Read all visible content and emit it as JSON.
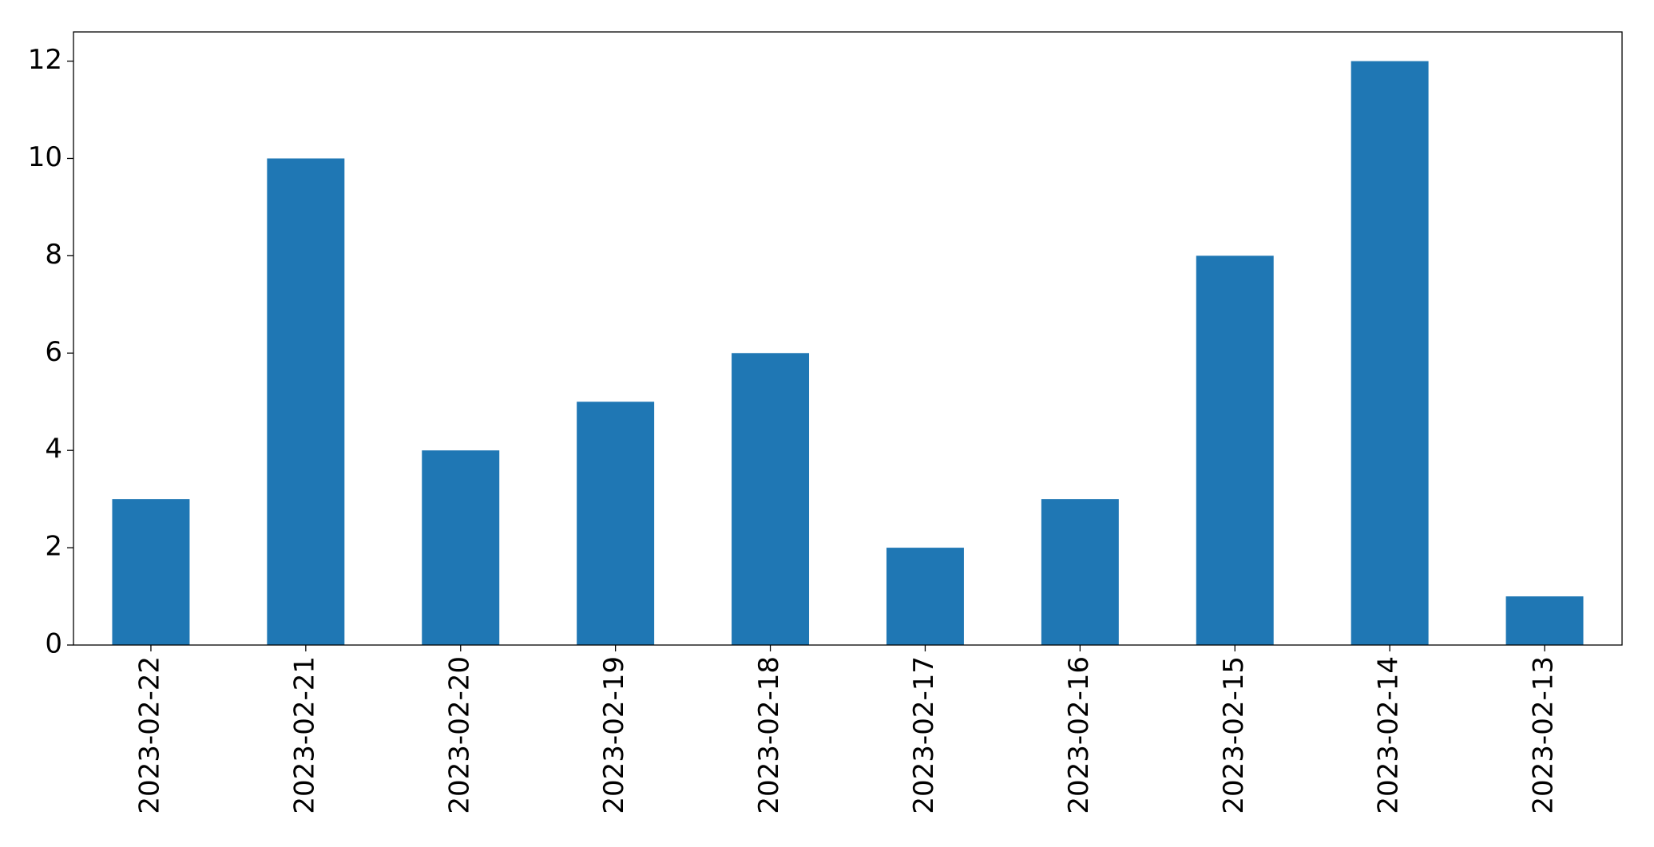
{
  "chart_data": {
    "type": "bar",
    "categories": [
      "2023-02-22",
      "2023-02-21",
      "2023-02-20",
      "2023-02-19",
      "2023-02-18",
      "2023-02-17",
      "2023-02-16",
      "2023-02-15",
      "2023-02-14",
      "2023-02-13"
    ],
    "values": [
      3,
      10,
      4,
      5,
      6,
      2,
      3,
      8,
      12,
      1
    ],
    "color": "#1f77b4",
    "ylim": [
      0,
      12.6
    ],
    "yticks": [
      0,
      2,
      4,
      6,
      8,
      10,
      12
    ],
    "grid": false
  }
}
